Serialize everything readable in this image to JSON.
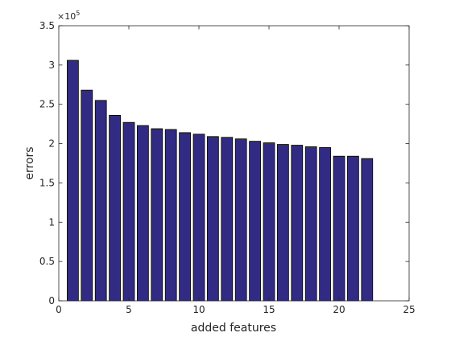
{
  "chart_data": {
    "type": "bar",
    "title": "",
    "xlabel": "added features",
    "ylabel": "errors",
    "exponent_label": "×10",
    "exponent_power": "5",
    "scale_factor": 100000,
    "categories": [
      1,
      2,
      3,
      4,
      5,
      6,
      7,
      8,
      9,
      10,
      11,
      12,
      13,
      14,
      15,
      16,
      17,
      18,
      19,
      20,
      21,
      22
    ],
    "values": [
      306000,
      268000,
      255000,
      236000,
      227000,
      223000,
      219000,
      218000,
      214000,
      212000,
      209000,
      208000,
      206000,
      203000,
      201000,
      199000,
      198000,
      196000,
      195000,
      184000,
      184000,
      181000
    ],
    "xlim": [
      0,
      25
    ],
    "ylim": [
      0,
      350000
    ],
    "xticks": [
      0,
      5,
      10,
      15,
      20,
      25
    ],
    "xtick_labels": [
      "0",
      "5",
      "10",
      "15",
      "20",
      "25"
    ],
    "yticks": [
      0,
      0.5,
      1,
      1.5,
      2,
      2.5,
      3,
      3.5
    ],
    "ytick_labels": [
      "0",
      "0.5",
      "1",
      "1.5",
      "2",
      "2.5",
      "3",
      "3.5"
    ],
    "bar_color": "#322b83",
    "bar_edge_color": "#000000",
    "grid": false,
    "legend": "none"
  }
}
